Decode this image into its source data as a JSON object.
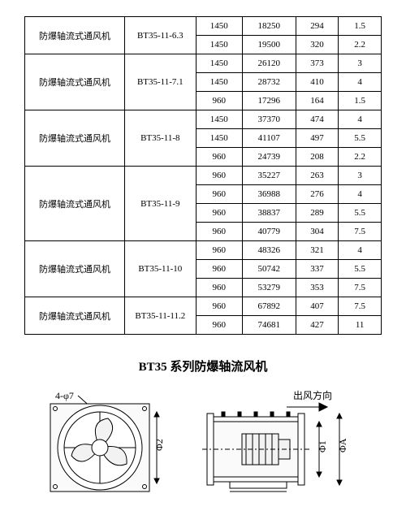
{
  "table": {
    "columns": [
      "name",
      "model",
      "c1",
      "c2",
      "c3",
      "c4"
    ],
    "col_widths_pct": [
      28,
      20,
      13,
      15,
      12,
      12
    ],
    "border_color": "#000000",
    "font_size": 11,
    "groups": [
      {
        "name": "防爆轴流式通风机",
        "model": "BT35-11-6.3",
        "rows": [
          [
            "1450",
            "18250",
            "294",
            "1.5"
          ],
          [
            "1450",
            "19500",
            "320",
            "2.2"
          ]
        ]
      },
      {
        "name": "防爆轴流式通风机",
        "model": "BT35-11-7.1",
        "rows": [
          [
            "1450",
            "26120",
            "373",
            "3"
          ],
          [
            "1450",
            "28732",
            "410",
            "4"
          ],
          [
            "960",
            "17296",
            "164",
            "1.5"
          ]
        ]
      },
      {
        "name": "防爆轴流式通风机",
        "model": "BT35-11-8",
        "rows": [
          [
            "1450",
            "37370",
            "474",
            "4"
          ],
          [
            "1450",
            "41107",
            "497",
            "5.5"
          ],
          [
            "960",
            "24739",
            "208",
            "2.2"
          ]
        ]
      },
      {
        "name": "防爆轴流式通风机",
        "model": "BT35-11-9",
        "rows": [
          [
            "960",
            "35227",
            "263",
            "3"
          ],
          [
            "960",
            "36988",
            "276",
            "4"
          ],
          [
            "960",
            "38837",
            "289",
            "5.5"
          ],
          [
            "960",
            "40779",
            "304",
            "7.5"
          ]
        ]
      },
      {
        "name": "防爆轴流式通风机",
        "model": "BT35-11-10",
        "rows": [
          [
            "960",
            "48326",
            "321",
            "4"
          ],
          [
            "960",
            "50742",
            "337",
            "5.5"
          ],
          [
            "960",
            "53279",
            "353",
            "7.5"
          ]
        ]
      },
      {
        "name": "防爆轴流式通风机",
        "model": "BT35-11-11.2",
        "rows": [
          [
            "960",
            "67892",
            "407",
            "7.5"
          ],
          [
            "960",
            "74681",
            "427",
            "11"
          ]
        ]
      }
    ]
  },
  "heading": "BT35 系列防爆轴流风机",
  "diagram": {
    "left": {
      "label_47": "4-φ7",
      "label_phi2": "Φ2"
    },
    "right": {
      "label_direction": "出风方向",
      "label_phi1": "Φ1",
      "label_phiA": "ΦA"
    },
    "stroke": "#000000",
    "fill": "#f2f2f2"
  }
}
